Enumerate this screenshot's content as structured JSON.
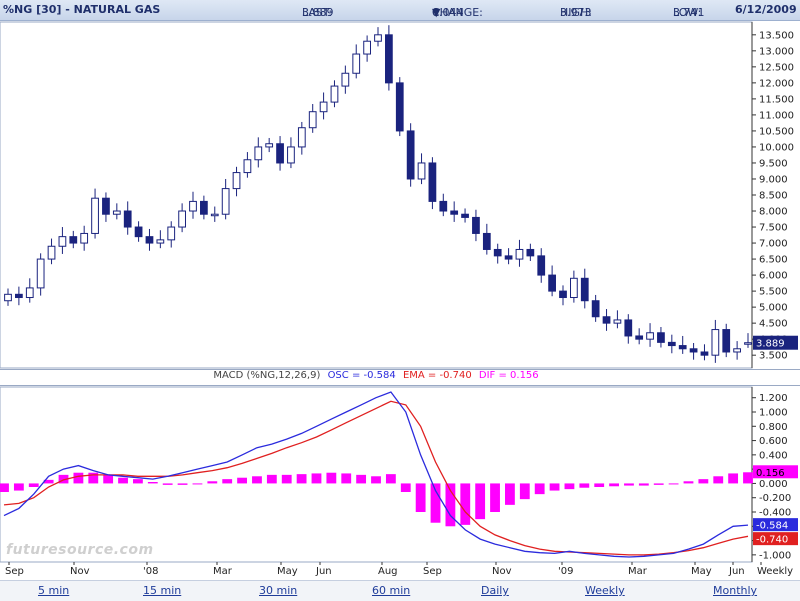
{
  "header": {
    "title": "%NG [30] - NATURAL GAS",
    "last_label": "LAST:",
    "last_value": "3.889",
    "change_label": "CHANGE:",
    "change_value": "0.044",
    "high_label": "HIGH:",
    "high_value": "3.973",
    "low_label": "LOW:",
    "low_value": "3.741",
    "date": "6/12/2009"
  },
  "macd_label": {
    "prefix": "MACD (%NG,12,26,9)",
    "osc": "OSC = -0.584",
    "ema": "EMA = -0.740",
    "dif": "DIF = 0.156"
  },
  "watermark": "futuresource.com",
  "footer": {
    "links": [
      "5 min",
      "15 min",
      "30 min",
      "60 min",
      "Daily",
      "Weekly",
      "Monthly"
    ]
  },
  "colors": {
    "up_candle": "#ffffff",
    "down_candle": "#1a237e",
    "osc_line": "#2b2bdd",
    "ema_line": "#e02020",
    "dif_hist": "#ff00ff"
  },
  "chart_data": [
    {
      "type": "candlestick",
      "title": "%NG [30] - NATURAL GAS",
      "ylim": [
        3.1,
        13.9
      ],
      "y_ticks": [
        "3.500",
        "4.000",
        "4.500",
        "5.000",
        "5.500",
        "6.000",
        "6.500",
        "7.000",
        "7.500",
        "8.000",
        "8.500",
        "9.000",
        "9.500",
        "10.000",
        "10.500",
        "11.000",
        "11.500",
        "12.000",
        "12.500",
        "13.000",
        "13.500"
      ],
      "x_ticks": [
        "Sep",
        "Nov",
        "'08",
        "Mar",
        "May",
        "Jun",
        "Aug",
        "Sep",
        "Nov",
        "'09",
        "Mar",
        "May",
        "Jun",
        "Weekly"
      ],
      "last_price_label": "3.889",
      "close": [
        5.4,
        5.3,
        5.6,
        6.5,
        6.9,
        7.2,
        7.0,
        7.3,
        8.4,
        7.9,
        8.0,
        7.5,
        7.2,
        7.0,
        7.1,
        7.5,
        8.0,
        8.3,
        7.9,
        7.9,
        8.7,
        9.2,
        9.6,
        10.0,
        10.1,
        9.5,
        10.0,
        10.6,
        11.1,
        11.4,
        11.9,
        12.3,
        12.9,
        13.3,
        13.5,
        12.0,
        10.5,
        9.0,
        9.5,
        8.3,
        8.0,
        7.9,
        7.8,
        7.3,
        6.8,
        6.6,
        6.5,
        6.8,
        6.6,
        6.0,
        5.5,
        5.3,
        5.9,
        5.2,
        4.7,
        4.5,
        4.6,
        4.1,
        4.0,
        4.2,
        3.9,
        3.8,
        3.7,
        3.6,
        3.5,
        4.3,
        3.6,
        3.7,
        3.889
      ],
      "change": [
        null,
        -0.1,
        0.3,
        0.9,
        0.4,
        0.3,
        -0.2,
        0.3,
        1.1,
        -0.5,
        0.1,
        -0.5,
        -0.3,
        -0.2,
        0.1,
        0.4,
        0.5,
        0.3,
        -0.4,
        0.0,
        0.8,
        0.5,
        0.4,
        0.4,
        0.1,
        -0.6,
        0.5,
        0.6,
        0.5,
        0.3,
        0.5,
        0.4,
        0.6,
        0.4,
        0.2,
        -1.5,
        -1.5,
        -1.5,
        0.5,
        -1.2,
        -0.3,
        -0.1,
        -0.1,
        -0.5,
        -0.5,
        -0.2,
        -0.1,
        0.3,
        -0.2,
        -0.6,
        -0.5,
        -0.2,
        0.6,
        -0.7,
        -0.5,
        -0.2,
        0.1,
        -0.5,
        -0.1,
        0.2,
        -0.3,
        -0.1,
        -0.1,
        -0.1,
        -0.1,
        0.8,
        -0.7,
        0.1,
        0.0
      ]
    },
    {
      "type": "line",
      "title": "MACD (%NG,12,26,9)",
      "ylim": [
        -1.1,
        1.35
      ],
      "y_ticks": [
        "1.200",
        "1.000",
        "0.800",
        "0.600",
        "0.400",
        "0.200",
        "0.000",
        "-0.200",
        "-0.400",
        "-0.600",
        "-0.800",
        "-1.000"
      ],
      "last_labels": {
        "dif": "0.156",
        "osc": "-0.584",
        "ema": "-0.740"
      },
      "series": [
        {
          "name": "OSC",
          "color": "#2b2bdd",
          "values": [
            -0.45,
            -0.35,
            -0.15,
            0.1,
            0.2,
            0.25,
            0.18,
            0.12,
            0.1,
            0.08,
            0.06,
            0.1,
            0.15,
            0.2,
            0.25,
            0.3,
            0.4,
            0.5,
            0.55,
            0.62,
            0.7,
            0.8,
            0.9,
            1.0,
            1.1,
            1.2,
            1.28,
            1.0,
            0.4,
            -0.1,
            -0.45,
            -0.65,
            -0.78,
            -0.85,
            -0.9,
            -0.95,
            -0.97,
            -0.98,
            -0.95,
            -0.98,
            -1.0,
            -1.02,
            -1.03,
            -1.02,
            -1.0,
            -0.98,
            -0.92,
            -0.85,
            -0.72,
            -0.6,
            -0.584
          ]
        },
        {
          "name": "EMA",
          "color": "#e02020",
          "values": [
            -0.3,
            -0.28,
            -0.2,
            -0.05,
            0.05,
            0.1,
            0.12,
            0.12,
            0.12,
            0.1,
            0.1,
            0.1,
            0.12,
            0.15,
            0.18,
            0.22,
            0.28,
            0.35,
            0.42,
            0.5,
            0.57,
            0.65,
            0.75,
            0.85,
            0.95,
            1.05,
            1.15,
            1.1,
            0.8,
            0.3,
            -0.1,
            -0.4,
            -0.6,
            -0.72,
            -0.8,
            -0.87,
            -0.92,
            -0.95,
            -0.96,
            -0.97,
            -0.98,
            -0.99,
            -1.0,
            -1.0,
            -0.99,
            -0.97,
            -0.94,
            -0.9,
            -0.84,
            -0.78,
            -0.74
          ]
        },
        {
          "name": "DIF",
          "color": "#ff00ff",
          "values": [
            -0.12,
            -0.1,
            -0.05,
            0.05,
            0.12,
            0.15,
            0.15,
            0.12,
            0.08,
            0.06,
            0.02,
            -0.02,
            -0.02,
            0.0,
            0.03,
            0.06,
            0.08,
            0.1,
            0.12,
            0.12,
            0.13,
            0.14,
            0.15,
            0.14,
            0.12,
            0.1,
            0.13,
            -0.12,
            -0.4,
            -0.55,
            -0.6,
            -0.58,
            -0.5,
            -0.4,
            -0.3,
            -0.22,
            -0.15,
            -0.1,
            -0.08,
            -0.06,
            -0.05,
            -0.04,
            -0.03,
            -0.03,
            -0.02,
            0.0,
            0.03,
            0.06,
            0.1,
            0.14,
            0.156
          ]
        }
      ]
    }
  ]
}
